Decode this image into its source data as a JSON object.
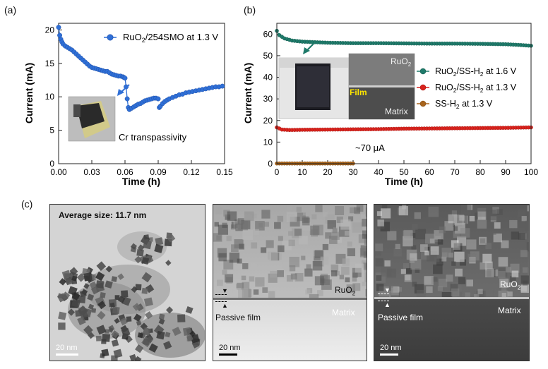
{
  "panels": {
    "a": "(a)",
    "b": "(b)",
    "c": "(c)"
  },
  "colors": {
    "blue": "#2f6fd6",
    "teal": "#1f7a6a",
    "red": "#d9231d",
    "brown": "#a8641c"
  },
  "chart_data": [
    {
      "type": "line",
      "panel": "(a)",
      "xlabel": "Time (h)",
      "ylabel": "Current (mA)",
      "xlim": [
        0,
        0.15
      ],
      "ylim": [
        0,
        21
      ],
      "xticks": [
        "0.00",
        "0.03",
        "0.06",
        "0.09",
        "0.12",
        "0.15"
      ],
      "yticks": [
        "0",
        "5",
        "10",
        "15",
        "20"
      ],
      "legend": "top-right",
      "series": [
        {
          "name": "RuO2/254SMO at 1.3 V",
          "color": "#2f6fd6",
          "points": [
            [
              0.0,
              20.4
            ],
            [
              0.001,
              19.2
            ],
            [
              0.002,
              18.6
            ],
            [
              0.003,
              18.2
            ],
            [
              0.004,
              17.9
            ],
            [
              0.006,
              17.6
            ],
            [
              0.008,
              17.4
            ],
            [
              0.01,
              17.2
            ],
            [
              0.012,
              17.0
            ],
            [
              0.014,
              16.7
            ],
            [
              0.016,
              16.4
            ],
            [
              0.018,
              16.1
            ],
            [
              0.02,
              15.8
            ],
            [
              0.022,
              15.5
            ],
            [
              0.024,
              15.2
            ],
            [
              0.026,
              14.9
            ],
            [
              0.028,
              14.6
            ],
            [
              0.03,
              14.4
            ],
            [
              0.032,
              14.3
            ],
            [
              0.034,
              14.2
            ],
            [
              0.036,
              14.1
            ],
            [
              0.038,
              14.0
            ],
            [
              0.04,
              13.9
            ],
            [
              0.042,
              13.8
            ],
            [
              0.044,
              13.8
            ],
            [
              0.046,
              13.6
            ],
            [
              0.048,
              13.4
            ],
            [
              0.05,
              13.3
            ],
            [
              0.052,
              13.2
            ],
            [
              0.054,
              13.1
            ],
            [
              0.056,
              13.1
            ],
            [
              0.058,
              13.0
            ],
            [
              0.059,
              12.9
            ],
            [
              0.06,
              12.8
            ],
            [
              0.061,
              11.5
            ],
            [
              0.062,
              9.7
            ],
            [
              0.063,
              8.4
            ],
            [
              0.064,
              8.1
            ],
            [
              0.066,
              8.3
            ],
            [
              0.068,
              8.5
            ],
            [
              0.07,
              8.7
            ],
            [
              0.072,
              8.9
            ],
            [
              0.074,
              9.0
            ],
            [
              0.076,
              9.2
            ],
            [
              0.078,
              9.4
            ],
            [
              0.08,
              9.5
            ],
            [
              0.082,
              9.6
            ],
            [
              0.084,
              9.7
            ],
            [
              0.086,
              9.8
            ],
            [
              0.088,
              9.8
            ],
            [
              0.09,
              9.7
            ],
            [
              0.091,
              8.4
            ],
            [
              0.092,
              8.6
            ],
            [
              0.094,
              9.0
            ],
            [
              0.096,
              9.3
            ],
            [
              0.098,
              9.5
            ],
            [
              0.1,
              9.7
            ],
            [
              0.103,
              9.9
            ],
            [
              0.106,
              10.1
            ],
            [
              0.109,
              10.3
            ],
            [
              0.112,
              10.4
            ],
            [
              0.115,
              10.6
            ],
            [
              0.118,
              10.7
            ],
            [
              0.121,
              10.8
            ],
            [
              0.124,
              10.9
            ],
            [
              0.127,
              11.0
            ],
            [
              0.13,
              11.1
            ],
            [
              0.133,
              11.2
            ],
            [
              0.136,
              11.3
            ],
            [
              0.139,
              11.4
            ],
            [
              0.142,
              11.5
            ],
            [
              0.145,
              11.5
            ],
            [
              0.148,
              11.6
            ]
          ]
        }
      ],
      "annotations": [
        "Cr transpassivity"
      ]
    },
    {
      "type": "line",
      "panel": "(b)",
      "xlabel": "Time (h)",
      "ylabel": "Current (mA)",
      "xlim": [
        0,
        100
      ],
      "ylim": [
        0,
        65
      ],
      "xticks": [
        "0",
        "10",
        "20",
        "30",
        "40",
        "50",
        "60",
        "70",
        "80",
        "90",
        "100"
      ],
      "yticks": [
        "0",
        "10",
        "20",
        "30",
        "40",
        "50",
        "60"
      ],
      "legend": "right",
      "series": [
        {
          "name": "RuO2/SS-H2 at 1.6 V",
          "color": "#1f7a6a",
          "points": [
            [
              0,
              61.5
            ],
            [
              1,
              59.5
            ],
            [
              3,
              58.0
            ],
            [
              6,
              57.0
            ],
            [
              10,
              56.5
            ],
            [
              20,
              56.0
            ],
            [
              30,
              55.8
            ],
            [
              40,
              55.8
            ],
            [
              50,
              55.7
            ],
            [
              60,
              55.6
            ],
            [
              70,
              55.6
            ],
            [
              80,
              55.5
            ],
            [
              90,
              55.3
            ],
            [
              95,
              55.0
            ],
            [
              100,
              54.6
            ]
          ]
        },
        {
          "name": "RuO2/SS-H2 at 1.3 V",
          "color": "#d9231d",
          "points": [
            [
              0,
              16.8
            ],
            [
              2,
              15.8
            ],
            [
              5,
              15.6
            ],
            [
              10,
              15.7
            ],
            [
              20,
              15.8
            ],
            [
              30,
              15.9
            ],
            [
              40,
              16.0
            ],
            [
              50,
              16.2
            ],
            [
              60,
              16.3
            ],
            [
              70,
              16.4
            ],
            [
              80,
              16.5
            ],
            [
              90,
              16.6
            ],
            [
              100,
              16.8
            ]
          ]
        },
        {
          "name": "SS-H2 at 1.3 V",
          "color": "#a8641c",
          "points": [
            [
              0,
              0.1
            ],
            [
              5,
              0.1
            ],
            [
              10,
              0.1
            ],
            [
              15,
              0.1
            ],
            [
              20,
              0.1
            ],
            [
              25,
              0.1
            ],
            [
              30,
              0.1
            ]
          ]
        }
      ],
      "annotations": [
        "~70 μA",
        "RuO2",
        "Film",
        "Matrix"
      ]
    }
  ],
  "legend_a": {
    "prefix": "RuO",
    "sub": "2",
    "suffix": "/254SMO at 1.3 V"
  },
  "annotation_a": "Cr transpassivity",
  "legend_b": [
    {
      "prefix": "RuO",
      "sub1": "2",
      "mid": "/SS-H",
      "sub2": "2",
      "suffix": " at 1.6 V"
    },
    {
      "prefix": "RuO",
      "sub1": "2",
      "mid": "/SS-H",
      "sub2": "2",
      "suffix": " at 1.3 V"
    },
    {
      "prefix": "",
      "sub1": "",
      "mid": "SS-H",
      "sub2": "2",
      "suffix": " at 1.3 V"
    }
  ],
  "annotation_b": "~70 μA",
  "inset_b": {
    "ruo2": "RuO",
    "ruo2_sub": "2",
    "film": "Film",
    "matrix": "Matrix"
  },
  "panel_c": {
    "avg_size": "Average size: 11.7 nm",
    "scalebar": "20 nm",
    "ruo2": "RuO",
    "ruo2_sub": "2",
    "matrix": "Matrix",
    "passive_film": "Passive film"
  }
}
